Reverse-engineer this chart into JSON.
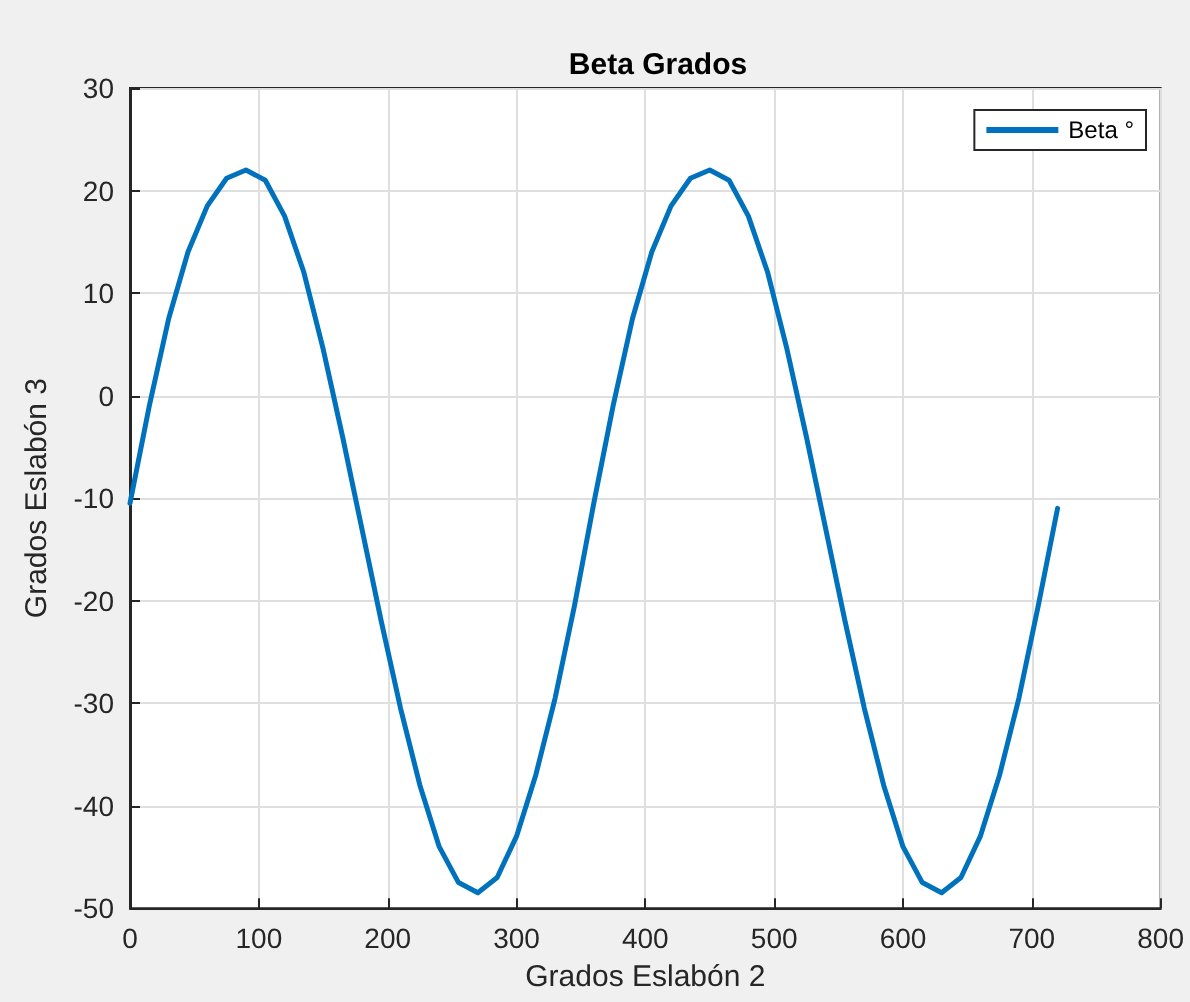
{
  "chart_data": {
    "type": "line",
    "title": "Beta Grados",
    "xlabel": "Grados Eslabón 2",
    "ylabel": "Grados Eslabón 3",
    "xlim": [
      0,
      800
    ],
    "xticks": [
      0,
      100,
      200,
      300,
      400,
      500,
      600,
      700,
      800
    ],
    "ylim": [
      -50,
      30
    ],
    "yticks": [
      -50,
      -40,
      -30,
      -20,
      -10,
      0,
      10,
      20,
      30
    ],
    "grid": true,
    "legend": "top right",
    "marker": "none",
    "line_style": "solid",
    "series": [
      {
        "name": "Beta °",
        "color": "#0072bd",
        "x": [
          0,
          15,
          30,
          45,
          60,
          75,
          90,
          105,
          120,
          135,
          150,
          165,
          180,
          195,
          210,
          225,
          240,
          255,
          270,
          285,
          300,
          315,
          330,
          345,
          360,
          375,
          390,
          405,
          420,
          435,
          450,
          465,
          480,
          495,
          510,
          525,
          540,
          555,
          570,
          585,
          600,
          615,
          630,
          645,
          660,
          675,
          690,
          705,
          720
        ],
        "values": [
          -10.5,
          -1,
          7.5,
          14,
          18.5,
          21.2,
          22,
          21,
          17.5,
          12,
          4.5,
          -4,
          -13,
          -22,
          -30.5,
          -38,
          -44,
          -47.5,
          -48.5,
          -47,
          -43,
          -37,
          -29.5,
          -20.5,
          -10.5,
          -1,
          7.5,
          14,
          18.5,
          21.2,
          22,
          21,
          17.5,
          12,
          4.5,
          -4,
          -13,
          -22,
          -30.5,
          -38,
          -44,
          -47.5,
          -48.5,
          -47,
          -43,
          -37,
          -29.5,
          -20.5,
          -11
        ]
      }
    ]
  }
}
